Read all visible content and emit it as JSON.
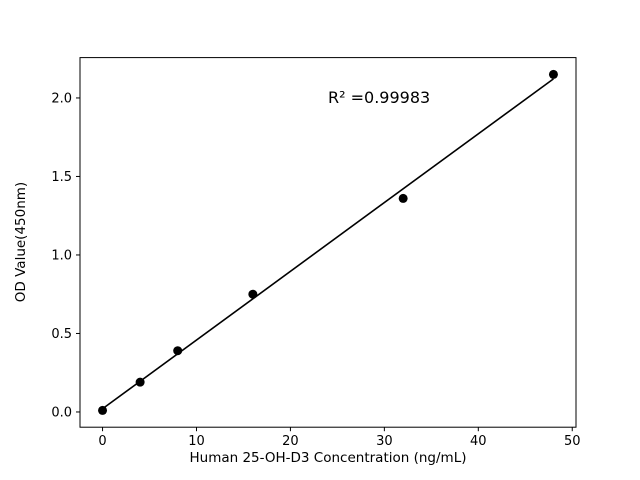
{
  "chart_data": {
    "type": "scatter",
    "title": "",
    "xlabel": "Human 25-OH-D3 Concentration (ng/mL)",
    "ylabel": "OD Value(450nm)",
    "annotation": {
      "text": "R² =0.99983",
      "x": 24,
      "y": 2.0
    },
    "x": [
      0,
      4,
      8,
      16,
      32,
      48
    ],
    "y": [
      0.01,
      0.19,
      0.39,
      0.75,
      1.36,
      2.15
    ],
    "xticks": [
      0,
      10,
      20,
      30,
      40,
      50
    ],
    "xtick_labels": [
      "0",
      "10",
      "20",
      "30",
      "40",
      "50"
    ],
    "yticks": [
      0.0,
      0.5,
      1.0,
      1.5,
      2.0
    ],
    "ytick_labels": [
      "0.0",
      "0.5",
      "1.0",
      "1.5",
      "2.0"
    ],
    "xlim": [
      -2.4,
      50.4
    ],
    "ylim": [
      -0.097,
      2.257
    ],
    "fit_line": true,
    "grid": false,
    "legend": null,
    "marker_color": "#000000",
    "line_color": "#000000",
    "background_color": "#ffffff"
  }
}
